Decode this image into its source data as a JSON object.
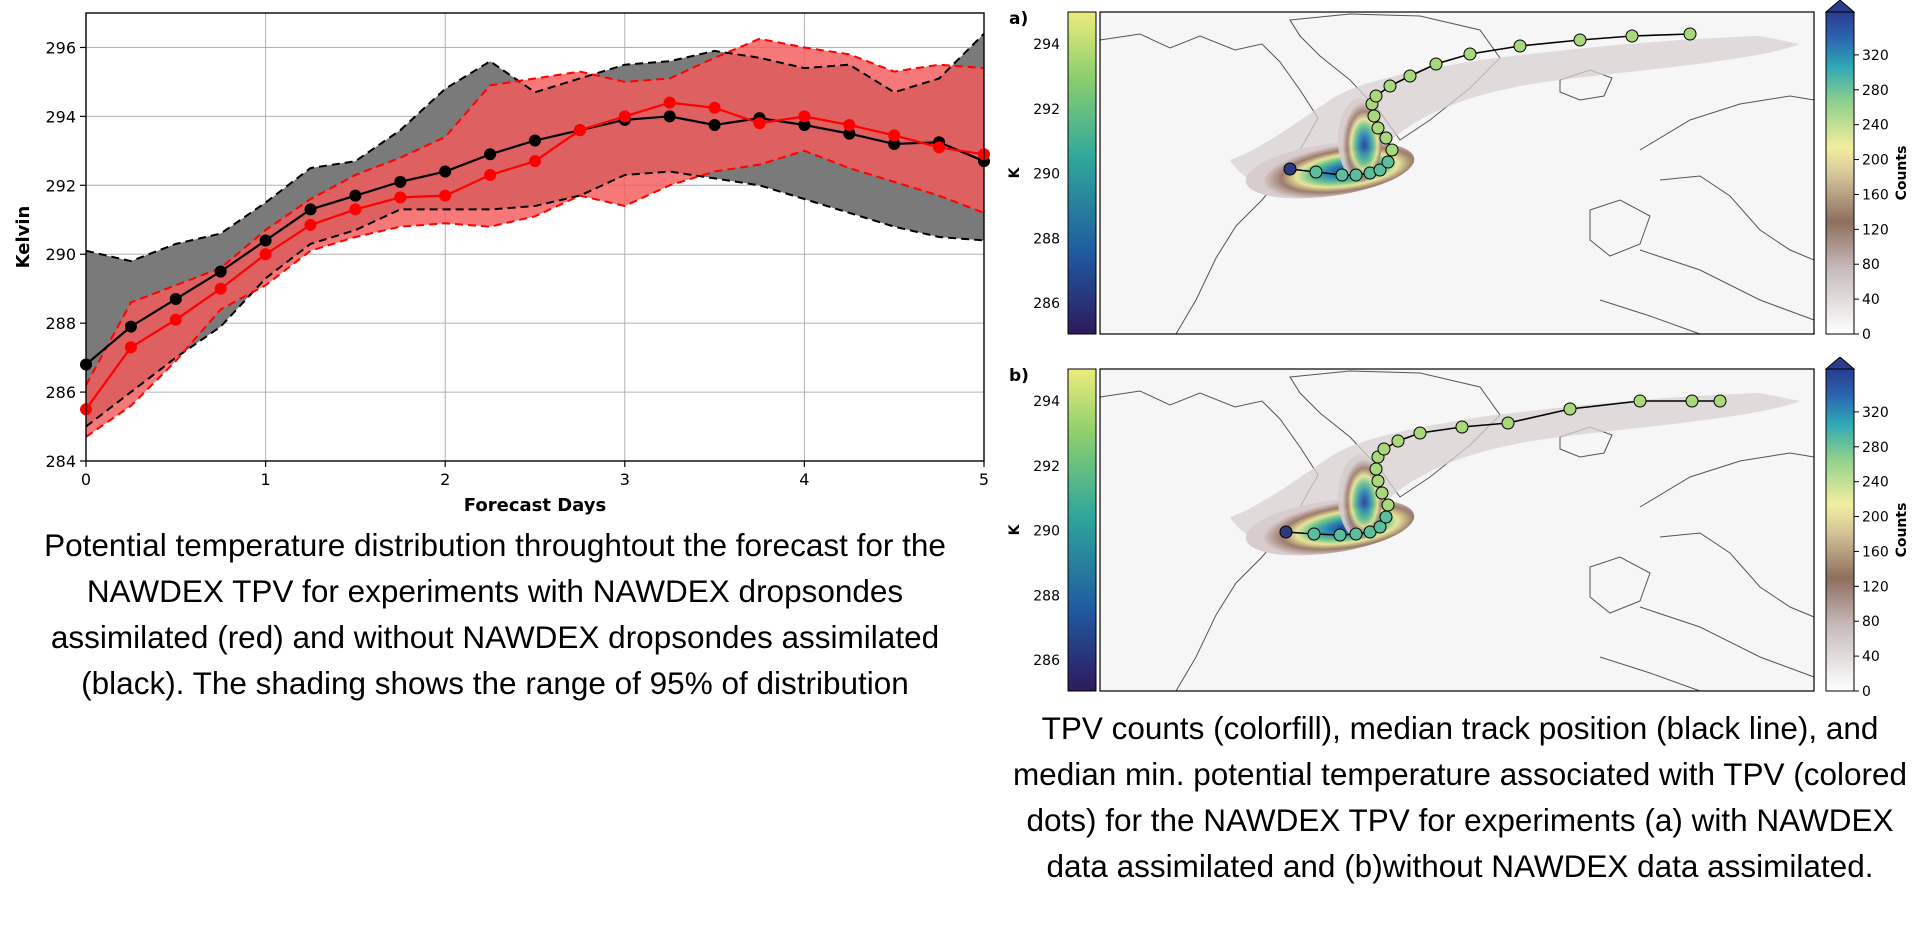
{
  "chart_data": [
    {
      "type": "line",
      "title": "",
      "xlabel": "Forecast Days",
      "ylabel": "Kelvin",
      "xlim": [
        0,
        5
      ],
      "ylim": [
        284,
        297
      ],
      "xticks": [
        0,
        1,
        2,
        3,
        4,
        5
      ],
      "yticks": [
        284,
        286,
        288,
        290,
        292,
        294,
        296
      ],
      "grid": true,
      "x": [
        0,
        0.25,
        0.5,
        0.75,
        1,
        1.25,
        1.5,
        1.75,
        2,
        2.25,
        2.5,
        2.75,
        3,
        3.25,
        3.5,
        3.75,
        4,
        4.25,
        4.5,
        4.75,
        5
      ],
      "series": [
        {
          "color": "#000000",
          "band_color": "#7a7a7a",
          "values": [
            286.8,
            287.9,
            288.7,
            289.5,
            290.4,
            291.3,
            291.7,
            292.1,
            292.4,
            292.9,
            293.3,
            293.6,
            293.9,
            294.0,
            293.75,
            293.95,
            293.75,
            293.5,
            293.2,
            293.25,
            292.7
          ],
          "upper": [
            290.1,
            289.8,
            290.3,
            290.6,
            291.5,
            292.5,
            292.7,
            293.6,
            294.8,
            295.6,
            294.7,
            295.1,
            295.5,
            295.6,
            295.9,
            295.7,
            295.4,
            295.5,
            294.7,
            295.1,
            296.4
          ],
          "lower": [
            285.0,
            286.0,
            287.0,
            287.9,
            289.3,
            290.3,
            290.7,
            291.3,
            291.3,
            291.3,
            291.4,
            291.7,
            292.3,
            292.4,
            292.2,
            292.0,
            291.6,
            291.2,
            290.8,
            290.5,
            290.4
          ]
        },
        {
          "color": "#ff0000",
          "band_color": "#f45a5a",
          "values": [
            285.5,
            287.3,
            288.1,
            289.0,
            290.0,
            290.85,
            291.3,
            291.65,
            291.7,
            292.3,
            292.7,
            293.6,
            294.0,
            294.4,
            294.25,
            293.8,
            294.0,
            293.75,
            293.45,
            293.1,
            292.9
          ],
          "upper": [
            286.2,
            288.6,
            289.1,
            289.6,
            290.7,
            291.6,
            292.3,
            292.8,
            293.4,
            294.9,
            295.1,
            295.3,
            295.0,
            295.1,
            295.7,
            296.25,
            296.0,
            295.8,
            295.3,
            295.5,
            295.4
          ],
          "lower": [
            284.7,
            285.6,
            286.9,
            288.4,
            289.1,
            290.1,
            290.5,
            290.8,
            290.9,
            290.8,
            291.1,
            291.7,
            291.4,
            292.0,
            292.4,
            292.6,
            293.0,
            292.5,
            292.1,
            291.7,
            291.2
          ]
        }
      ]
    },
    {
      "type": "map",
      "panel_label": "a)",
      "colorbar_left": {
        "label": "K",
        "ticks": [
          286,
          288,
          290,
          292,
          294
        ]
      },
      "colorbar_right": {
        "label": "Counts",
        "ticks": [
          0,
          40,
          80,
          120,
          160,
          200,
          240,
          280,
          320
        ]
      }
    },
    {
      "type": "map",
      "panel_label": "b)",
      "colorbar_left": {
        "label": "K",
        "ticks": [
          286,
          288,
          290,
          292,
          294
        ]
      },
      "colorbar_right": {
        "label": "Counts",
        "ticks": [
          0,
          40,
          80,
          120,
          160,
          200,
          240,
          280,
          320
        ]
      }
    }
  ],
  "captions": {
    "left": "Potential temperature distribution throughtout the forecast for the NAWDEX TPV for experiments with NAWDEX dropsondes assimilated (red) and without NAWDEX dropsondes assimilated (black). The shading shows the range of 95% of distribution",
    "right": "TPV counts (colorfill), median track position (black line), and median min. potential temperature associated with TPV (colored dots) for the NAWDEX TPV for experiments (a) with NAWDEX data assimilated and (b)without NAWDEX data assimilated."
  }
}
